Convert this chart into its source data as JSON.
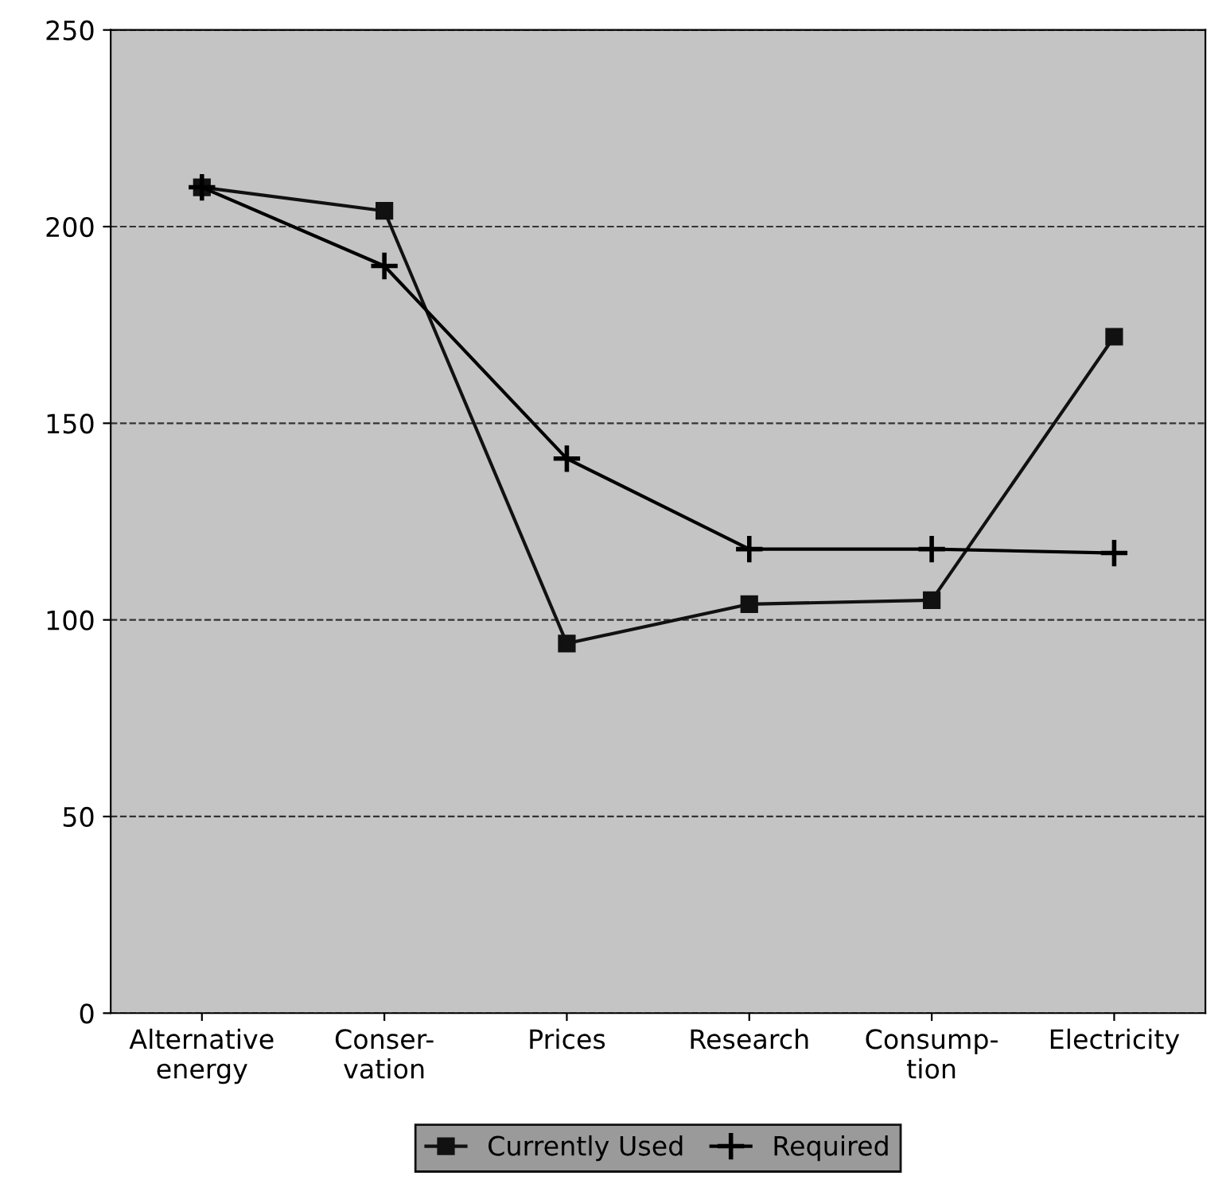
{
  "chart_data": {
    "type": "line",
    "categories": [
      "Alternative\nenergy",
      "Conser-\nvation",
      "Prices",
      "Research",
      "Consump-\ntion",
      "Electricity"
    ],
    "series": [
      {
        "name": "Currently Used",
        "color": "#111111",
        "marker": "square",
        "values": [
          210,
          204,
          94,
          104,
          105,
          172
        ]
      },
      {
        "name": "Required",
        "color": "#000000",
        "marker": "cross",
        "values": [
          210,
          190,
          141,
          118,
          118,
          117
        ]
      }
    ],
    "ylim": [
      0,
      250
    ],
    "yticks": [
      0,
      50,
      100,
      150,
      200,
      250
    ],
    "grid": "y",
    "legend": "bottom",
    "line_style": "solid"
  }
}
